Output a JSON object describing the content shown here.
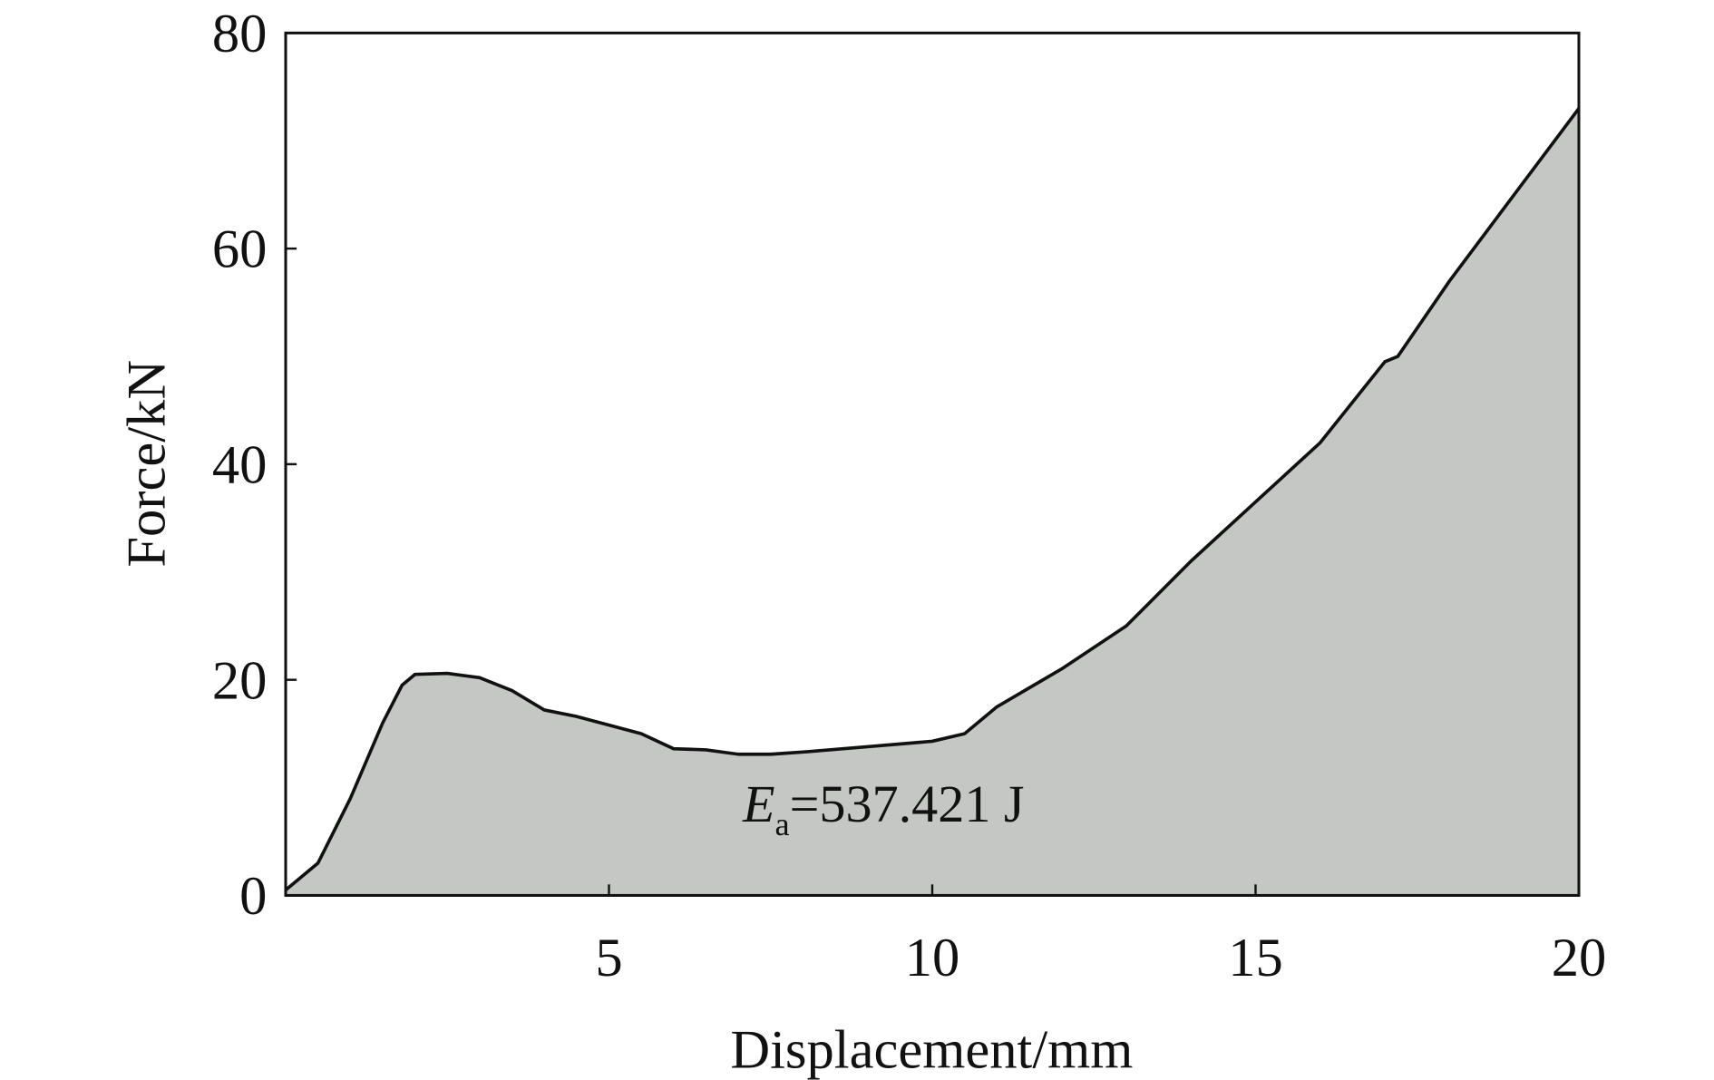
{
  "chart_data": {
    "type": "area",
    "title": "",
    "xlabel": "Displacement/mm",
    "ylabel": "Force/kN",
    "xlim": [
      0,
      20
    ],
    "ylim": [
      0,
      80
    ],
    "xticks": [
      5,
      10,
      15,
      20
    ],
    "yticks": [
      0,
      20,
      40,
      60,
      80
    ],
    "grid": false,
    "fill_color": "#c4c7c3",
    "line_color": "#111111",
    "annotation": {
      "symbol": "E",
      "subscript": "a",
      "text": "=537.421 J"
    },
    "x": [
      0,
      0.5,
      1,
      1.5,
      1.8,
      2,
      2.5,
      3,
      3.5,
      4,
      4.5,
      5,
      5.5,
      6,
      6.5,
      7,
      7.5,
      8,
      9,
      10,
      10.5,
      11,
      12,
      13,
      14,
      15,
      16,
      17,
      17.2,
      18,
      19,
      20
    ],
    "y": [
      0.5,
      3,
      9,
      16,
      19.5,
      20.5,
      20.6,
      20.2,
      19,
      17.2,
      16.6,
      15.8,
      15,
      13.6,
      13.5,
      13.1,
      13.1,
      13.3,
      13.8,
      14.3,
      15,
      17.5,
      21,
      25,
      31,
      36.5,
      42,
      49.5,
      50,
      57,
      65,
      73
    ]
  }
}
